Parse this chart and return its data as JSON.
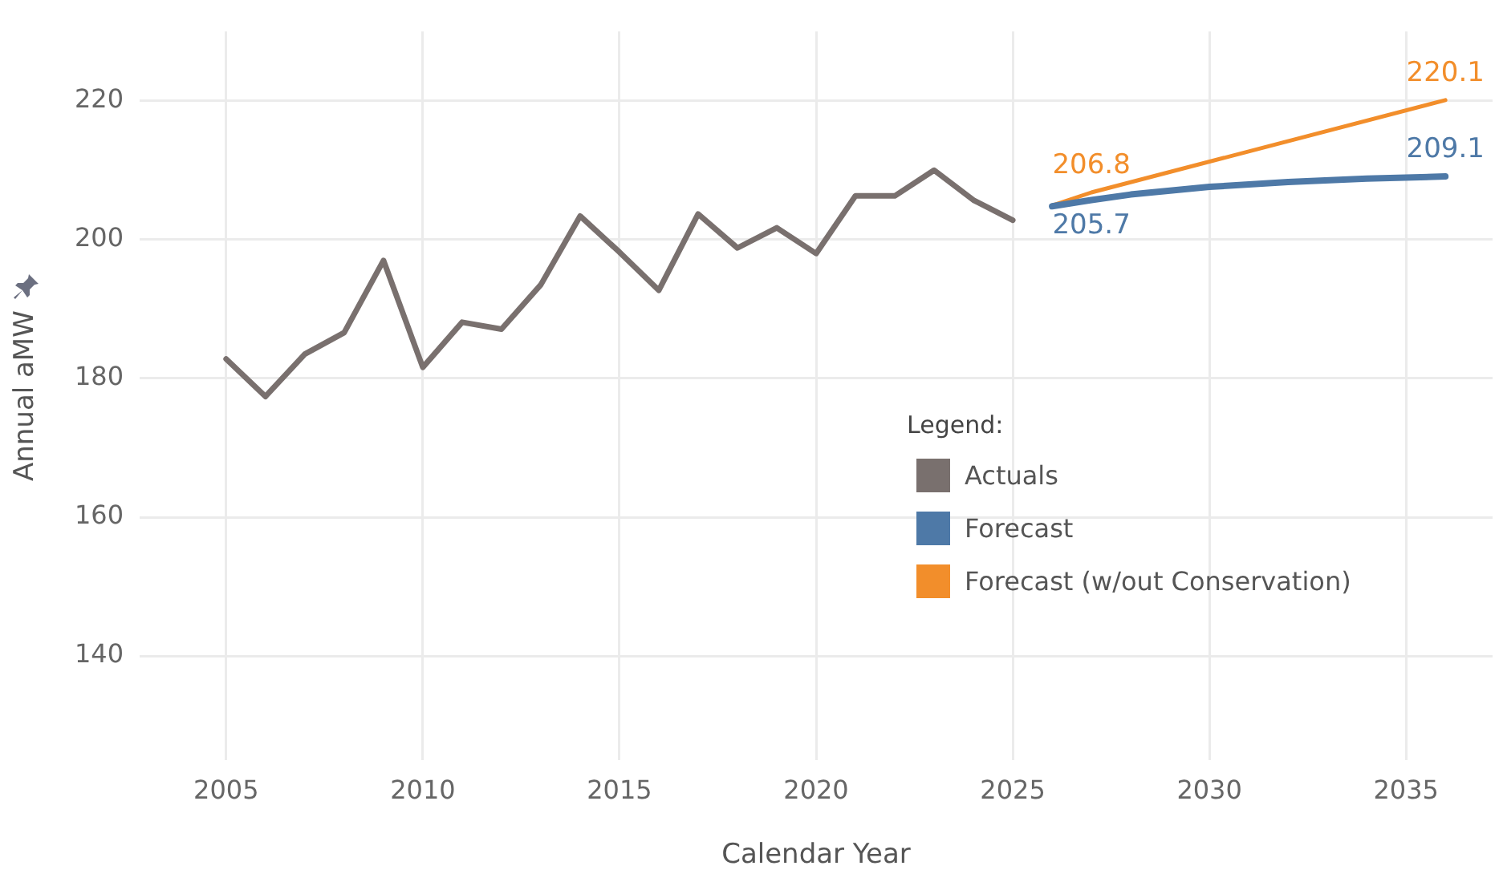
{
  "chart_data": {
    "type": "line",
    "xlabel": "Calendar Year",
    "ylabel": "Annual aMW",
    "legend_title": "Legend:",
    "xlim": [
      2002.8,
      2037.2
    ],
    "ylim": [
      125,
      230
    ],
    "xticks": [
      2005,
      2010,
      2015,
      2020,
      2025,
      2030,
      2035
    ],
    "yticks": [
      140,
      160,
      180,
      200,
      220
    ],
    "grid": true,
    "legend": "right",
    "line_style": "solid",
    "series": [
      {
        "name": "Actuals",
        "color": "#79706e",
        "x": [
          2005,
          2006,
          2007,
          2008,
          2009,
          2010,
          2011,
          2012,
          2013,
          2014,
          2015,
          2016,
          2017,
          2018,
          2019,
          2020,
          2021,
          2022,
          2023,
          2024,
          2025
        ],
        "values": [
          182.8,
          177.4,
          183.5,
          186.6,
          197.0,
          181.6,
          188.1,
          187.1,
          193.5,
          203.4,
          198.2,
          192.7,
          203.7,
          198.8,
          201.7,
          198.0,
          206.3,
          206.3,
          210.0,
          205.7,
          202.8
        ]
      },
      {
        "name": "Forecast",
        "color": "#4e79a7",
        "x": [
          2026,
          2027,
          2028,
          2030,
          2032,
          2034,
          2036
        ],
        "values": [
          204.8,
          205.7,
          206.5,
          207.6,
          208.3,
          208.8,
          209.1
        ],
        "value_labels": [
          null,
          "205.7",
          null,
          null,
          null,
          null,
          "209.1"
        ]
      },
      {
        "name": "Forecast (w/out Conservation)",
        "color": "#f28e2b",
        "x": [
          2026,
          2027,
          2036
        ],
        "values": [
          204.9,
          206.8,
          220.1
        ],
        "value_labels": [
          null,
          "206.8",
          "220.1"
        ]
      }
    ]
  }
}
